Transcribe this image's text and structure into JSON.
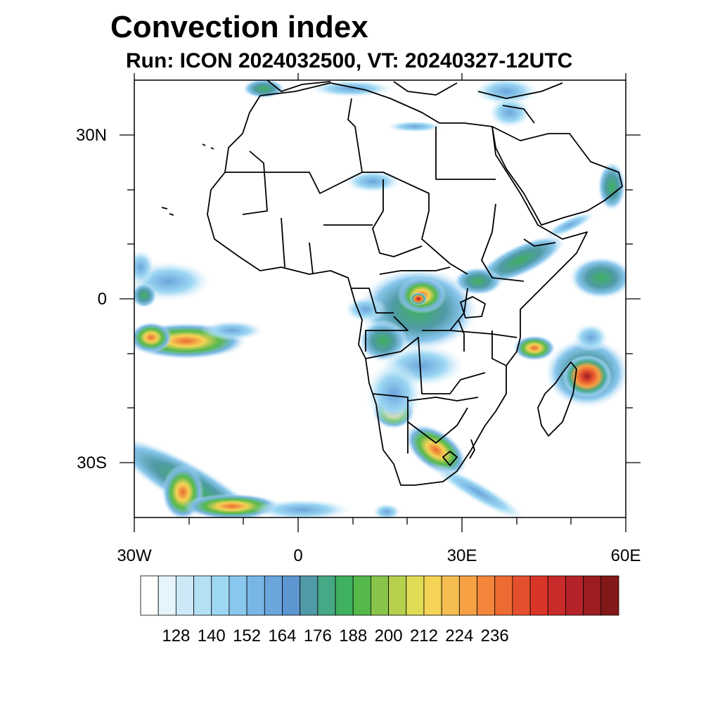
{
  "title": "Convection index",
  "subtitle": "Run: ICON 2024032500,  VT: 20240327-12UTC",
  "axes": {
    "lon_labels": [
      "30W",
      "0",
      "30E",
      "60E"
    ],
    "lat_labels": [
      "30N",
      "0",
      "30S"
    ]
  },
  "colorbar": {
    "colors": [
      "#ffffff",
      "#e6f4fb",
      "#cde9f7",
      "#b3e0f5",
      "#9dd7f3",
      "#8ac7ee",
      "#78b6e6",
      "#6aa5dc",
      "#5d96d0",
      "#4f9aa6",
      "#46a884",
      "#3fb05e",
      "#55b84a",
      "#87c449",
      "#b6cf4d",
      "#e0dc55",
      "#f4d355",
      "#f6bd50",
      "#f5a144",
      "#f3863b",
      "#ed6a33",
      "#e4502d",
      "#da3628",
      "#c92a2a",
      "#b42328",
      "#9b1d22",
      "#821818"
    ],
    "labels": [
      "128",
      "140",
      "152",
      "164",
      "176",
      "188",
      "200",
      "212",
      "224",
      "236"
    ]
  },
  "chart_data": {
    "type": "heatmap",
    "title": "Convection index",
    "subtitle": "Run: ICON 2024032500,  VT: 20240327-12UTC",
    "lon_range": [
      -30,
      60
    ],
    "lat_range": [
      -40,
      40
    ],
    "xticks": [
      "30W",
      "0",
      "30E",
      "60E"
    ],
    "yticks": [
      "30N",
      "0",
      "30S"
    ],
    "colorbar_levels": [
      128,
      140,
      152,
      164,
      176,
      188,
      200,
      212,
      224,
      236
    ]
  }
}
